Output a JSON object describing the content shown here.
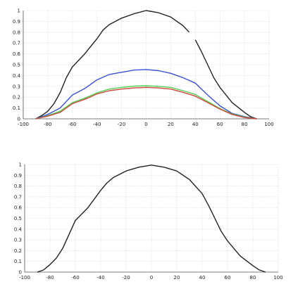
{
  "chart_data": [
    {
      "type": "line",
      "xlim": [
        -100,
        100
      ],
      "ylim": [
        0,
        1
      ],
      "x_ticks": [
        "-100",
        "-80",
        "-60",
        "-40",
        "-20",
        "0",
        "20",
        "40",
        "60",
        "80",
        "100"
      ],
      "y_ticks": [
        "0",
        "0.1",
        "0.2",
        "0.3",
        "0.4",
        "0.5",
        "0.6",
        "0.7",
        "0.8",
        "0.9",
        "1"
      ],
      "grid": true,
      "series": [
        {
          "color": "#222222",
          "segments": [
            [
              [
                -90,
                0
              ],
              [
                -85,
                0.03
              ],
              [
                -80,
                0.07
              ],
              [
                -75,
                0.14
              ],
              [
                -70,
                0.24
              ],
              [
                -65,
                0.38
              ],
              [
                -60,
                0.48
              ],
              [
                -50,
                0.6
              ],
              [
                -40,
                0.74
              ],
              [
                -35,
                0.82
              ],
              [
                -30,
                0.87
              ],
              [
                -20,
                0.93
              ],
              [
                -10,
                0.97
              ],
              [
                0,
                1.0
              ],
              [
                10,
                0.98
              ],
              [
                20,
                0.94
              ],
              [
                30,
                0.86
              ],
              [
                35,
                0.8
              ]
            ],
            [
              [
                40,
                0.73
              ],
              [
                45,
                0.62
              ],
              [
                50,
                0.5
              ],
              [
                55,
                0.38
              ],
              [
                60,
                0.29
              ],
              [
                70,
                0.15
              ],
              [
                80,
                0.06
              ],
              [
                85,
                0.02
              ],
              [
                90,
                0.0
              ]
            ]
          ]
        },
        {
          "color": "#3a4fd6",
          "segments": [
            [
              [
                -90,
                0
              ],
              [
                -80,
                0.04
              ],
              [
                -70,
                0.1
              ],
              [
                -60,
                0.22
              ],
              [
                -50,
                0.28
              ],
              [
                -40,
                0.36
              ],
              [
                -30,
                0.41
              ],
              [
                -20,
                0.43
              ],
              [
                -10,
                0.45
              ],
              [
                0,
                0.455
              ],
              [
                10,
                0.445
              ],
              [
                20,
                0.42
              ],
              [
                30,
                0.38
              ],
              [
                40,
                0.33
              ],
              [
                50,
                0.22
              ],
              [
                60,
                0.12
              ],
              [
                70,
                0.05
              ],
              [
                80,
                0.02
              ],
              [
                90,
                0.0
              ]
            ]
          ]
        },
        {
          "color": "#4fd04f",
          "segments": [
            [
              [
                -90,
                0
              ],
              [
                -80,
                0.03
              ],
              [
                -70,
                0.07
              ],
              [
                -60,
                0.15
              ],
              [
                -50,
                0.19
              ],
              [
                -40,
                0.24
              ],
              [
                -30,
                0.275
              ],
              [
                -20,
                0.29
              ],
              [
                -10,
                0.302
              ],
              [
                0,
                0.305
              ],
              [
                10,
                0.3
              ],
              [
                20,
                0.29
              ],
              [
                30,
                0.26
              ],
              [
                40,
                0.225
              ],
              [
                50,
                0.16
              ],
              [
                60,
                0.095
              ],
              [
                70,
                0.045
              ],
              [
                80,
                0.015
              ],
              [
                90,
                0.0
              ]
            ]
          ]
        },
        {
          "color": "#d0453b",
          "segments": [
            [
              [
                -90,
                0
              ],
              [
                -80,
                0.025
              ],
              [
                -70,
                0.06
              ],
              [
                -60,
                0.14
              ],
              [
                -50,
                0.18
              ],
              [
                -40,
                0.23
              ],
              [
                -30,
                0.26
              ],
              [
                -20,
                0.275
              ],
              [
                -10,
                0.285
              ],
              [
                0,
                0.29
              ],
              [
                10,
                0.285
              ],
              [
                20,
                0.275
              ],
              [
                30,
                0.245
              ],
              [
                40,
                0.21
              ],
              [
                50,
                0.15
              ],
              [
                60,
                0.09
              ],
              [
                70,
                0.04
              ],
              [
                80,
                0.012
              ],
              [
                90,
                0.0
              ]
            ]
          ]
        }
      ]
    },
    {
      "type": "line",
      "xlim": [
        -100,
        100
      ],
      "ylim": [
        0,
        1
      ],
      "x_ticks": [
        "-100",
        "-80",
        "-60",
        "-40",
        "-20",
        "0",
        "20",
        "40",
        "60",
        "80",
        "100"
      ],
      "y_ticks": [
        "0",
        "0.1",
        "0.2",
        "0.3",
        "0.4",
        "0.5",
        "0.6",
        "0.7",
        "0.8",
        "0.9",
        "1"
      ],
      "grid": true,
      "series": [
        {
          "color": "#222222",
          "segments": [
            [
              [
                -90,
                0
              ],
              [
                -85,
                0.02
              ],
              [
                -80,
                0.07
              ],
              [
                -75,
                0.13
              ],
              [
                -70,
                0.22
              ],
              [
                -65,
                0.35
              ],
              [
                -60,
                0.48
              ],
              [
                -50,
                0.6
              ],
              [
                -40,
                0.76
              ],
              [
                -35,
                0.83
              ],
              [
                -30,
                0.88
              ],
              [
                -20,
                0.94
              ],
              [
                -10,
                0.975
              ],
              [
                0,
                0.995
              ],
              [
                10,
                0.975
              ],
              [
                20,
                0.94
              ],
              [
                30,
                0.86
              ],
              [
                40,
                0.73
              ],
              [
                45,
                0.62
              ],
              [
                50,
                0.5
              ],
              [
                55,
                0.38
              ],
              [
                60,
                0.29
              ],
              [
                70,
                0.15
              ],
              [
                80,
                0.06
              ],
              [
                85,
                0.02
              ],
              [
                90,
                0.0
              ]
            ]
          ]
        }
      ]
    }
  ]
}
